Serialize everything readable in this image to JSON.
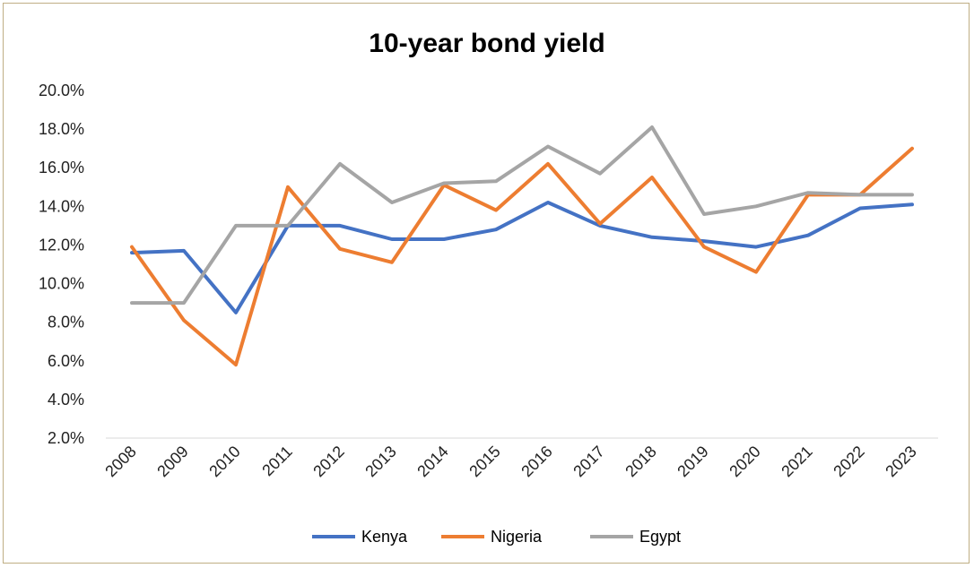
{
  "chart_data": {
    "type": "line",
    "title": "10-year bond yield",
    "xlabel": "",
    "ylabel": "",
    "categories": [
      "2008",
      "2009",
      "2010",
      "2011",
      "2012",
      "2013",
      "2014",
      "2015",
      "2016",
      "2017",
      "2018",
      "2019",
      "2020",
      "2021",
      "2022",
      "2023"
    ],
    "y_ticks": [
      "2.0%",
      "4.0%",
      "6.0%",
      "8.0%",
      "10.0%",
      "12.0%",
      "14.0%",
      "16.0%",
      "18.0%",
      "20.0%"
    ],
    "ylim": [
      2,
      20
    ],
    "grid": false,
    "legend": "bottom",
    "series": [
      {
        "name": "Kenya",
        "color": "#4472c4",
        "values": [
          11.6,
          11.7,
          8.5,
          13.0,
          13.0,
          12.3,
          12.3,
          12.8,
          14.2,
          13.0,
          12.4,
          12.2,
          11.9,
          12.5,
          13.9,
          14.1
        ]
      },
      {
        "name": "Nigeria",
        "color": "#ed7d31",
        "values": [
          11.9,
          8.1,
          5.8,
          15.0,
          11.8,
          11.1,
          15.1,
          13.8,
          16.2,
          13.1,
          15.5,
          11.9,
          10.6,
          14.6,
          14.6,
          17.0
        ]
      },
      {
        "name": "Egypt",
        "color": "#a5a5a5",
        "values": [
          9.0,
          9.0,
          13.0,
          13.0,
          16.2,
          14.2,
          15.2,
          15.3,
          17.1,
          15.7,
          18.1,
          13.6,
          14.0,
          14.7,
          14.6,
          14.6
        ]
      }
    ]
  }
}
